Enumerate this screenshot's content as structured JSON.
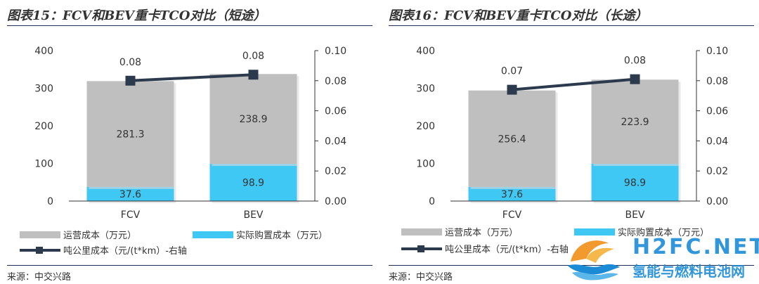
{
  "charts": [
    {
      "title": "图表15：FCV和BEV重卡TCO对比（短途）",
      "source": "来源：中交兴路",
      "chart_data": {
        "type": "bar",
        "stacked": true,
        "categories": [
          "FCV",
          "BEV"
        ],
        "series": [
          {
            "name": "实际购置成本（万元）",
            "axis": "left",
            "color": "#3fc8f4",
            "values": [
              37.6,
              98.9
            ]
          },
          {
            "name": "运营成本（万元）",
            "axis": "left",
            "color": "#bfbfbf",
            "values": [
              281.3,
              238.9
            ]
          }
        ],
        "line_series": {
          "name": "吨公里成本（元/(t*km）-右轴",
          "type": "line",
          "axis": "right",
          "color": "#2c3a4e",
          "values": [
            0.08,
            0.084
          ],
          "labels": [
            "0.08",
            "0.08"
          ]
        },
        "y_left": {
          "range": [
            0,
            400
          ],
          "ticks": [
            "0",
            "100",
            "200",
            "300",
            "400"
          ]
        },
        "y_right": {
          "range": [
            0,
            0.1
          ],
          "ticks": [
            "0.00",
            "0.02",
            "0.04",
            "0.06",
            "0.08",
            "0.10"
          ]
        },
        "grid": false,
        "legend": "bottom"
      }
    },
    {
      "title": "图表16：FCV和BEV重卡TCO对比（长途）",
      "source": "来源：中交兴路",
      "chart_data": {
        "type": "bar",
        "stacked": true,
        "categories": [
          "FCV",
          "BEV"
        ],
        "series": [
          {
            "name": "实际购置成本（万元）",
            "axis": "left",
            "color": "#3fc8f4",
            "values": [
              37.6,
              98.9
            ]
          },
          {
            "name": "运营成本（万元）",
            "axis": "left",
            "color": "#bfbfbf",
            "values": [
              256.4,
              223.9
            ]
          }
        ],
        "line_series": {
          "name": "吨公里成本（元/(t*km）-右轴",
          "type": "line",
          "axis": "right",
          "color": "#2c3a4e",
          "values": [
            0.074,
            0.081
          ],
          "labels": [
            "0.07",
            "0.08"
          ]
        },
        "y_left": {
          "range": [
            0,
            400
          ],
          "ticks": [
            "0",
            "100",
            "200",
            "300",
            "400"
          ]
        },
        "y_right": {
          "range": [
            0,
            0.1
          ],
          "ticks": [
            "0.00",
            "0.02",
            "0.04",
            "0.06",
            "0.08",
            "0.10"
          ]
        },
        "grid": false,
        "legend": "bottom"
      }
    }
  ],
  "watermark": {
    "en": "H2FC.NET",
    "cn": "氢能与燃料电池网"
  }
}
